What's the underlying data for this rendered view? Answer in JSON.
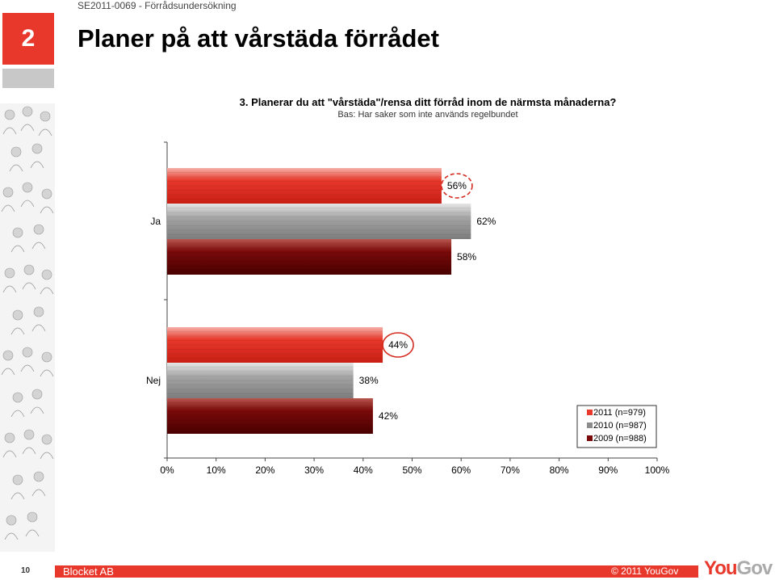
{
  "header": {
    "doc_label": "SE2011-0069 - Förrådsundersökning",
    "section_number": "2",
    "page_title": "Planer på att vårstäda förrådet"
  },
  "chart_data": {
    "type": "bar",
    "orientation": "horizontal",
    "title": "3. Planerar du att \"vårstäda\"/rensa ditt förråd inom de närmsta månaderna?",
    "subtitle": "Bas: Har saker som inte används regelbundet",
    "categories": [
      "Ja",
      "Nej"
    ],
    "series": [
      {
        "name": "2011 (n=979)",
        "values": [
          56,
          44
        ],
        "color": "#e8382b",
        "labels": [
          "56%",
          "44%"
        ]
      },
      {
        "name": "2010 (n=987)",
        "values": [
          62,
          38
        ],
        "color": "#8c8c8c",
        "labels": [
          "62%",
          "38%"
        ]
      },
      {
        "name": "2009 (n=988)",
        "values": [
          58,
          42
        ],
        "color": "#7a0a0a",
        "labels": [
          "58%",
          "42%"
        ]
      }
    ],
    "xlim": [
      0,
      100
    ],
    "xticks": [
      "0%",
      "10%",
      "20%",
      "30%",
      "40%",
      "50%",
      "60%",
      "70%",
      "80%",
      "90%",
      "100%"
    ],
    "legend_position": "bottom-right",
    "highlighted_labels": [
      "56%",
      "44%"
    ],
    "grid": false
  },
  "footer": {
    "page_number": "10",
    "company": "Blocket AB",
    "copyright": "© 2011 YouGov",
    "logo_text": "You",
    "logo_text_gray": "Gov"
  }
}
